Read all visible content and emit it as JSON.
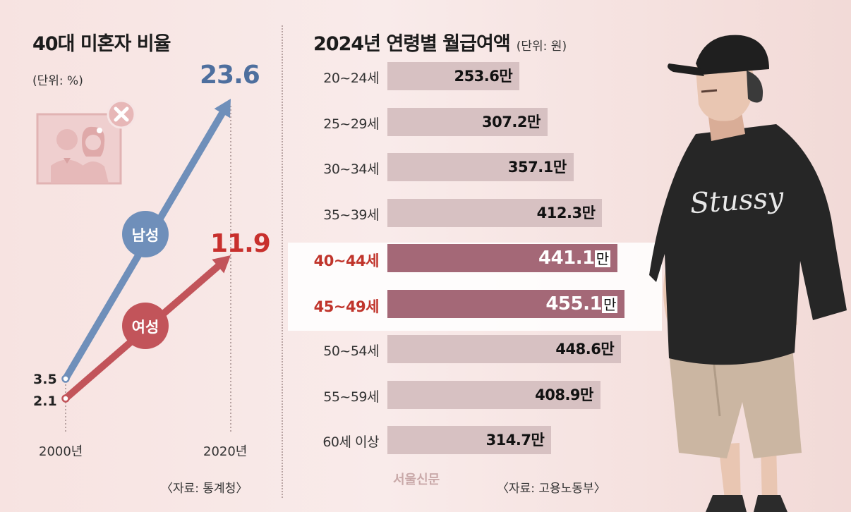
{
  "left_chart": {
    "title": "40대 미혼자 비율",
    "unit": "(단위: %)",
    "source": "〈자료: 통계청〉",
    "colors": {
      "male": "#6f8fba",
      "female": "#c2545a",
      "male_value": "#4e6f9e",
      "female_value": "#c8302d"
    },
    "icon": "couple-photo-with-x-icon"
  },
  "right_chart": {
    "title": "2024년 연령별 월급여액",
    "unit": "(단위: 원)",
    "source": "〈자료: 고용노동부〉",
    "watermark": "서울신문",
    "colors": {
      "bar": "#d7c1c2",
      "highlight_bar": "#a46877",
      "highlight_label": "#c0342b"
    }
  },
  "chart_data": [
    {
      "type": "line",
      "title": "40대 미혼자 비율",
      "ylabel": "(단위: %)",
      "x": [
        "2000년",
        "2020년"
      ],
      "series": [
        {
          "name": "남성",
          "values": [
            3.5,
            23.6
          ],
          "value_labels": [
            "3.5",
            "23.6"
          ]
        },
        {
          "name": "여성",
          "values": [
            2.1,
            11.9
          ],
          "value_labels": [
            "2.1",
            "11.9"
          ]
        }
      ],
      "ylim": [
        0,
        25
      ]
    },
    {
      "type": "bar",
      "orientation": "horizontal",
      "title": "2024년 연령별 월급여액",
      "unit": "(단위: 원)",
      "categories": [
        "20~24세",
        "25~29세",
        "30~34세",
        "35~39세",
        "40~44세",
        "45~49세",
        "50~54세",
        "55~59세",
        "60세 이상"
      ],
      "values": [
        253.6,
        307.2,
        357.1,
        412.3,
        441.1,
        455.1,
        448.6,
        408.9,
        314.7
      ],
      "value_labels": [
        "253.6",
        "307.2",
        "357.1",
        "412.3",
        "441.1",
        "455.1",
        "448.6",
        "408.9",
        "314.7"
      ],
      "value_suffix": "만",
      "highlighted": [
        "40~44세",
        "45~49세"
      ]
    }
  ],
  "illustration": {
    "subject": "young-man-in-cap-and-black-tshirt",
    "shirt_logo_text": "Stussy"
  }
}
